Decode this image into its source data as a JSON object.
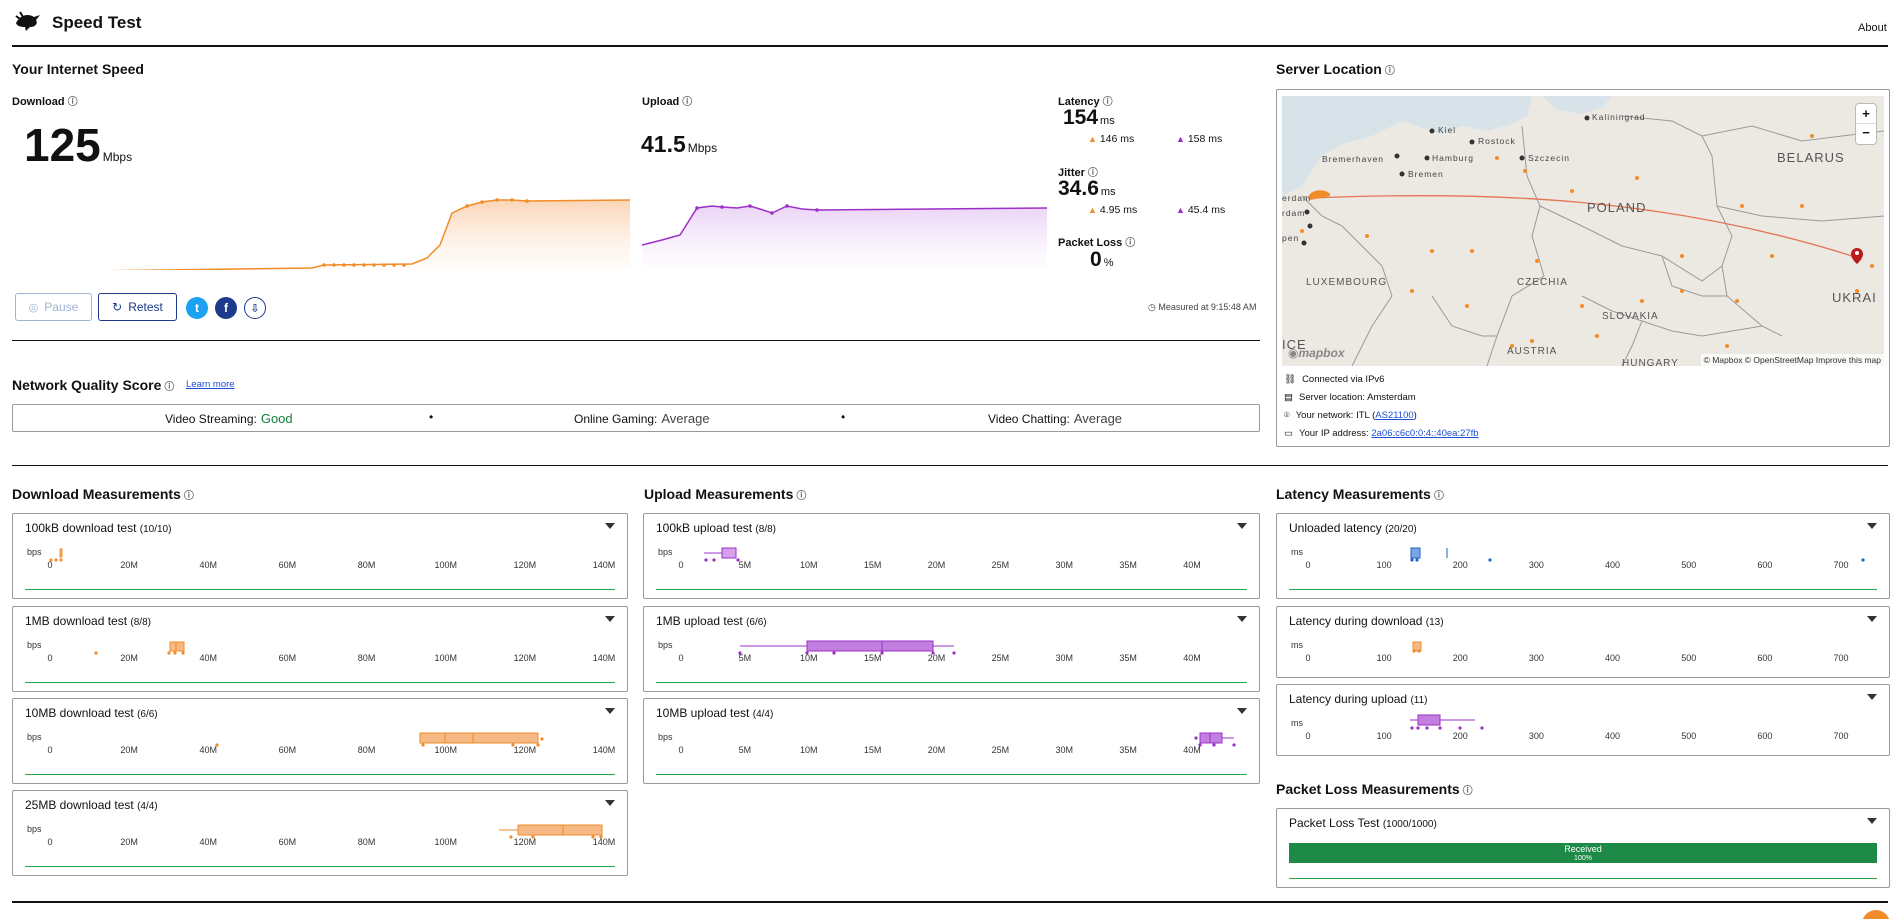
{
  "header": {
    "title": "Speed Test",
    "about": "About"
  },
  "speed": {
    "section_title": "Your Internet Speed",
    "download": {
      "label": "Download",
      "value": "125",
      "unit": "Mbps"
    },
    "upload": {
      "label": "Upload",
      "value": "41.5",
      "unit": "Mbps"
    },
    "latency": {
      "label": "Latency",
      "value": "154",
      "unit": "ms",
      "down": "146 ms",
      "up": "158 ms"
    },
    "jitter": {
      "label": "Jitter",
      "value": "34.6",
      "unit": "ms",
      "down": "4.95 ms",
      "up": "45.4 ms"
    },
    "packet_loss": {
      "label": "Packet Loss",
      "value": "0",
      "unit": "%"
    },
    "measured_at": "Measured at 9:15:48 AM",
    "pause_label": "Pause",
    "retest_label": "Retest"
  },
  "quality": {
    "title": "Network Quality Score",
    "learn_more": "Learn more",
    "items": [
      {
        "label": "Video Streaming:",
        "value": "Good",
        "color": "#15803d"
      },
      {
        "label": "Online Gaming:",
        "value": "Average",
        "color": "#444444"
      },
      {
        "label": "Video Chatting:",
        "value": "Average",
        "color": "#444444"
      }
    ]
  },
  "server": {
    "title": "Server Location",
    "map_labels": [
      "BELARUS",
      "POLAND",
      "CZECHIA",
      "SLOVAKIA",
      "AUSTRIA",
      "UKRAI",
      "LUXEMBOURG",
      "HUNGARY",
      "ICE",
      "Kaliningrad",
      "Kiel",
      "Rostock",
      "Bremerhaven",
      "Hamburg",
      "Szczecin",
      "Bremen",
      "erdam",
      "rdam",
      "pen"
    ],
    "map_logo": "mapbox",
    "map_attribution": "© Mapbox © OpenStreetMap Improve this map",
    "zoom_in": "+",
    "zoom_out": "−",
    "connected_via": "Connected via IPv6",
    "server_location": "Server location: Amsterdam",
    "network_prefix": "Your network: ITL (",
    "network_as": "AS21100",
    "network_suffix": ")",
    "ip_prefix": "Your IP address: ",
    "ip": "2a06:c6c0:0:4::40ea:27fb"
  },
  "download_measurements": {
    "title": "Download Measurements",
    "unit": "bps",
    "ticks": [
      "0",
      "20M",
      "40M",
      "60M",
      "80M",
      "100M",
      "120M",
      "140M"
    ],
    "tests": [
      {
        "title": "100kB download test",
        "count": "(10/10)"
      },
      {
        "title": "1MB download test",
        "count": "(8/8)"
      },
      {
        "title": "10MB download test",
        "count": "(6/6)"
      },
      {
        "title": "25MB download test",
        "count": "(4/4)"
      }
    ]
  },
  "upload_measurements": {
    "title": "Upload Measurements",
    "unit": "bps",
    "ticks": [
      "0",
      "5M",
      "10M",
      "15M",
      "20M",
      "25M",
      "30M",
      "35M",
      "40M"
    ],
    "tests": [
      {
        "title": "100kB upload test",
        "count": "(8/8)"
      },
      {
        "title": "1MB upload test",
        "count": "(6/6)"
      },
      {
        "title": "10MB upload test",
        "count": "(4/4)"
      }
    ]
  },
  "latency_measurements": {
    "title": "Latency Measurements",
    "unit": "ms",
    "ticks": [
      "0",
      "100",
      "200",
      "300",
      "400",
      "500",
      "600",
      "700"
    ],
    "tests": [
      {
        "title": "Unloaded latency",
        "count": "(20/20)"
      },
      {
        "title": "Latency during download",
        "count": "(13)"
      },
      {
        "title": "Latency during upload",
        "count": "(11)"
      }
    ]
  },
  "packet_loss_measurements": {
    "title": "Packet Loss Measurements",
    "test_title": "Packet Loss Test",
    "count": "(1000/1000)",
    "bar_label": "Received",
    "bar_pct": "100%"
  },
  "colors": {
    "download": "#f28c28",
    "upload": "#9b30c9",
    "latency": "#1f63c6",
    "green": "#22a34a"
  }
}
